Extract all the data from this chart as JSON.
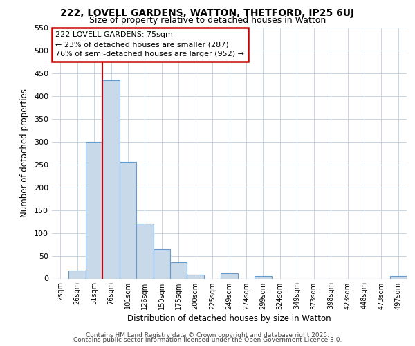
{
  "title1": "222, LOVELL GARDENS, WATTON, THETFORD, IP25 6UJ",
  "title2": "Size of property relative to detached houses in Watton",
  "xlabel": "Distribution of detached houses by size in Watton",
  "ylabel": "Number of detached properties",
  "bar_labels": [
    "2sqm",
    "26sqm",
    "51sqm",
    "76sqm",
    "101sqm",
    "126sqm",
    "150sqm",
    "175sqm",
    "200sqm",
    "225sqm",
    "249sqm",
    "274sqm",
    "299sqm",
    "324sqm",
    "349sqm",
    "373sqm",
    "398sqm",
    "423sqm",
    "448sqm",
    "473sqm",
    "497sqm"
  ],
  "bar_values": [
    0,
    18,
    300,
    435,
    255,
    120,
    65,
    35,
    8,
    0,
    12,
    0,
    5,
    0,
    0,
    0,
    0,
    0,
    0,
    0,
    5
  ],
  "bar_color": "#c8daea",
  "bar_edge_color": "#6699cc",
  "vline_color": "#cc0000",
  "vline_x_index": 3,
  "annotation_text": "222 LOVELL GARDENS: 75sqm\n← 23% of detached houses are smaller (287)\n76% of semi-detached houses are larger (952) →",
  "annotation_box_color": "#ffffff",
  "annotation_box_edge": "#cc0000",
  "ylim": [
    0,
    550
  ],
  "yticks": [
    0,
    50,
    100,
    150,
    200,
    250,
    300,
    350,
    400,
    450,
    500,
    550
  ],
  "footer1": "Contains HM Land Registry data © Crown copyright and database right 2025.",
  "footer2": "Contains public sector information licensed under the Open Government Licence 3.0.",
  "bg_color": "#ffffff",
  "plot_bg_color": "#ffffff",
  "grid_color": "#c8d4e0"
}
